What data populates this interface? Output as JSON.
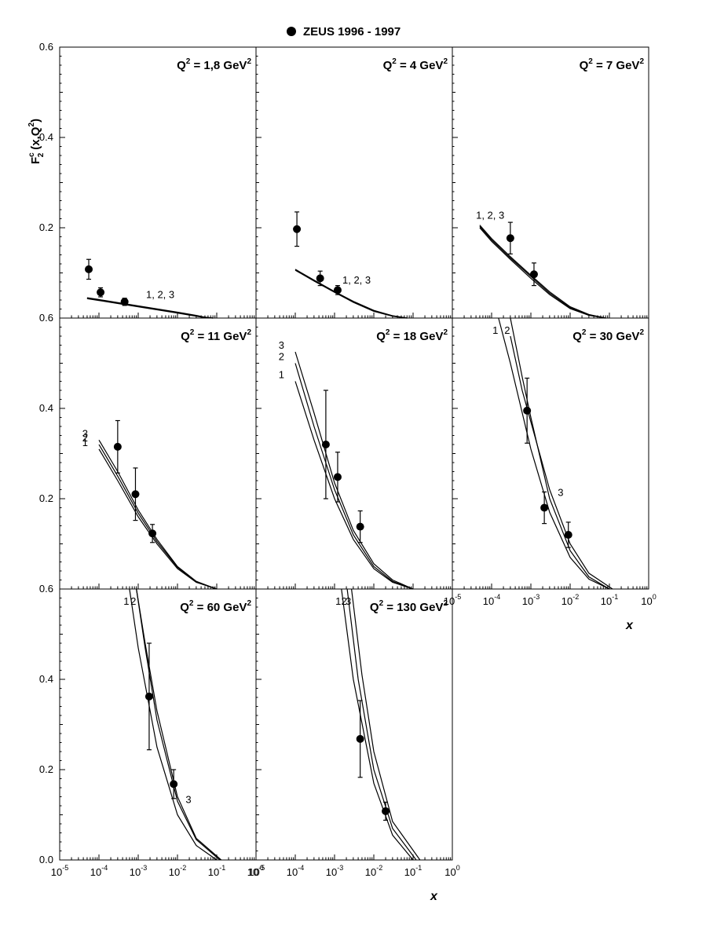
{
  "chart_data": {
    "type": "scatter",
    "legend": {
      "marker": "filled-circle",
      "label": "ZEUS 1996 - 1997",
      "placement": "top"
    },
    "ylabel": {
      "main": "F",
      "sup": "c",
      "sub": "2",
      "args": "(x,Q",
      "args_sup": "2",
      "args_close": ")"
    },
    "xlabel": "x",
    "x_scale": "log",
    "xlim": [
      1e-05,
      1
    ],
    "ylim": [
      0.0,
      0.6
    ],
    "x_tick_labels": [
      {
        "base": "10",
        "exp": "-5"
      },
      {
        "base": "10",
        "exp": "-4"
      },
      {
        "base": "10",
        "exp": "-3"
      },
      {
        "base": "10",
        "exp": "-2"
      },
      {
        "base": "10",
        "exp": "-1"
      },
      {
        "base": "10",
        "exp": "0"
      }
    ],
    "y_tick_labels": [
      "0.0",
      "0.2",
      "0.4",
      "0.6"
    ],
    "panels": [
      {
        "title": "Q² = 1,8 GeV²",
        "title_main": "Q",
        "title_mid": " = 1,8 GeV",
        "sup": "2",
        "points": [
          {
            "x": 5.5e-05,
            "y": 0.108,
            "err": 0.022
          },
          {
            "x": 0.00011,
            "y": 0.057,
            "err": 0.01
          },
          {
            "x": 0.00045,
            "y": 0.036,
            "err": 0.008
          }
        ],
        "curves": [
          {
            "name": "1",
            "points": [
              [
                5e-05,
                0.043
              ],
              [
                0.0001,
                0.039
              ],
              [
                0.001,
                0.025
              ],
              [
                0.01,
                0.011
              ],
              [
                0.03,
                0.004
              ],
              [
                0.05,
                0.001
              ],
              [
                0.08,
                0.0
              ]
            ]
          },
          {
            "name": "2",
            "points": [
              [
                5e-05,
                0.044
              ],
              [
                0.0001,
                0.04
              ],
              [
                0.001,
                0.026
              ],
              [
                0.01,
                0.012
              ],
              [
                0.03,
                0.005
              ],
              [
                0.05,
                0.002
              ],
              [
                0.08,
                0.0
              ]
            ]
          },
          {
            "name": "3",
            "points": [
              [
                5e-05,
                0.045
              ],
              [
                0.0001,
                0.041
              ],
              [
                0.001,
                0.027
              ],
              [
                0.01,
                0.013
              ],
              [
                0.03,
                0.006
              ],
              [
                0.05,
                0.002
              ],
              [
                0.08,
                0.0
              ]
            ]
          }
        ],
        "curve_labels": [
          "1, 2, 3"
        ]
      },
      {
        "title": "Q² = 4 GeV²",
        "title_main": "Q",
        "title_mid": " = 4 GeV",
        "sup": "2",
        "points": [
          {
            "x": 0.00011,
            "y": 0.197,
            "err": 0.038
          },
          {
            "x": 0.00043,
            "y": 0.088,
            "err": 0.016
          },
          {
            "x": 0.0012,
            "y": 0.062,
            "err": 0.01
          }
        ],
        "curves": [
          {
            "name": "1",
            "points": [
              [
                0.0001,
                0.106
              ],
              [
                0.0003,
                0.082
              ],
              [
                0.001,
                0.057
              ],
              [
                0.003,
                0.035
              ],
              [
                0.01,
                0.015
              ],
              [
                0.03,
                0.004
              ],
              [
                0.07,
                0.0
              ]
            ]
          },
          {
            "name": "2",
            "points": [
              [
                0.0001,
                0.107
              ],
              [
                0.0003,
                0.083
              ],
              [
                0.001,
                0.058
              ],
              [
                0.003,
                0.036
              ],
              [
                0.01,
                0.016
              ],
              [
                0.03,
                0.005
              ],
              [
                0.07,
                0.0
              ]
            ]
          },
          {
            "name": "3",
            "points": [
              [
                0.0001,
                0.108
              ],
              [
                0.0003,
                0.084
              ],
              [
                0.001,
                0.059
              ],
              [
                0.003,
                0.037
              ],
              [
                0.01,
                0.017
              ],
              [
                0.03,
                0.005
              ],
              [
                0.07,
                0.0
              ]
            ]
          }
        ],
        "curve_labels": [
          "1, 2, 3"
        ]
      },
      {
        "title": "Q² = 7 GeV²",
        "title_main": "Q",
        "title_mid": " = 7 GeV",
        "sup": "2",
        "points": [
          {
            "x": 0.0003,
            "y": 0.177,
            "err": 0.035
          },
          {
            "x": 0.0012,
            "y": 0.097,
            "err": 0.025
          }
        ],
        "curves": [
          {
            "name": "1",
            "points": [
              [
                5e-05,
                0.2
              ],
              [
                0.0001,
                0.17
              ],
              [
                0.0003,
                0.13
              ],
              [
                0.001,
                0.088
              ],
              [
                0.003,
                0.052
              ],
              [
                0.01,
                0.021
              ],
              [
                0.03,
                0.006
              ],
              [
                0.08,
                0.0
              ]
            ]
          },
          {
            "name": "2",
            "points": [
              [
                5e-05,
                0.203
              ],
              [
                0.0001,
                0.173
              ],
              [
                0.0003,
                0.133
              ],
              [
                0.001,
                0.092
              ],
              [
                0.003,
                0.055
              ],
              [
                0.01,
                0.023
              ],
              [
                0.03,
                0.007
              ],
              [
                0.08,
                0.0
              ]
            ]
          },
          {
            "name": "3",
            "points": [
              [
                5e-05,
                0.206
              ],
              [
                0.0001,
                0.176
              ],
              [
                0.0003,
                0.136
              ],
              [
                0.001,
                0.095
              ],
              [
                0.003,
                0.058
              ],
              [
                0.01,
                0.025
              ],
              [
                0.03,
                0.008
              ],
              [
                0.08,
                0.0
              ]
            ]
          }
        ],
        "curve_labels": [
          "1, 2, 3"
        ]
      },
      {
        "title": "Q² = 11 GeV²",
        "title_main": "Q",
        "title_mid": " = 11 GeV",
        "sup": "2",
        "points": [
          {
            "x": 0.0003,
            "y": 0.315,
            "err": 0.058
          },
          {
            "x": 0.00085,
            "y": 0.21,
            "err": 0.058
          },
          {
            "x": 0.0023,
            "y": 0.123,
            "err": 0.02
          }
        ],
        "curves": [
          {
            "name": "1",
            "points": [
              [
                0.0001,
                0.31
              ],
              [
                0.0003,
                0.24
              ],
              [
                0.001,
                0.16
              ],
              [
                0.003,
                0.1
              ],
              [
                0.01,
                0.045
              ],
              [
                0.03,
                0.015
              ],
              [
                0.1,
                0.0
              ]
            ]
          },
          {
            "name": "2",
            "points": [
              [
                0.0001,
                0.32
              ],
              [
                0.0003,
                0.25
              ],
              [
                0.001,
                0.168
              ],
              [
                0.003,
                0.105
              ],
              [
                0.01,
                0.048
              ],
              [
                0.03,
                0.016
              ],
              [
                0.1,
                0.0
              ]
            ]
          },
          {
            "name": "3",
            "points": [
              [
                0.0001,
                0.33
              ],
              [
                0.0003,
                0.26
              ],
              [
                0.001,
                0.175
              ],
              [
                0.003,
                0.11
              ],
              [
                0.01,
                0.05
              ],
              [
                0.03,
                0.017
              ],
              [
                0.1,
                0.0
              ]
            ]
          }
        ],
        "curve_labels": [
          "3",
          "2",
          "1"
        ]
      },
      {
        "title": "Q² = 18 GeV²",
        "title_main": "Q",
        "title_mid": " = 18 GeV",
        "sup": "2",
        "points": [
          {
            "x": 0.0006,
            "y": 0.32,
            "err": 0.12
          },
          {
            "x": 0.0012,
            "y": 0.248,
            "err": 0.055
          },
          {
            "x": 0.0045,
            "y": 0.138,
            "err": 0.035
          }
        ],
        "curves": [
          {
            "name": "1",
            "points": [
              [
                0.0001,
                0.46
              ],
              [
                0.0003,
                0.33
              ],
              [
                0.001,
                0.2
              ],
              [
                0.003,
                0.11
              ],
              [
                0.01,
                0.045
              ],
              [
                0.03,
                0.015
              ],
              [
                0.1,
                0.0
              ]
            ]
          },
          {
            "name": "2",
            "points": [
              [
                0.0001,
                0.5
              ],
              [
                0.0003,
                0.36
              ],
              [
                0.001,
                0.22
              ],
              [
                0.003,
                0.12
              ],
              [
                0.01,
                0.05
              ],
              [
                0.03,
                0.017
              ],
              [
                0.1,
                0.0
              ]
            ]
          },
          {
            "name": "3",
            "points": [
              [
                0.0001,
                0.525
              ],
              [
                0.0003,
                0.39
              ],
              [
                0.001,
                0.235
              ],
              [
                0.003,
                0.13
              ],
              [
                0.01,
                0.056
              ],
              [
                0.03,
                0.02
              ],
              [
                0.1,
                0.0
              ]
            ]
          }
        ],
        "curve_labels": [
          "3",
          "2",
          "1"
        ]
      },
      {
        "title": "Q² = 30 GeV²",
        "title_main": "Q",
        "title_mid": " = 30 GeV",
        "sup": "2",
        "points": [
          {
            "x": 0.0008,
            "y": 0.395,
            "err": 0.072
          },
          {
            "x": 0.0022,
            "y": 0.18,
            "err": 0.035
          },
          {
            "x": 0.009,
            "y": 0.12,
            "err": 0.028
          }
        ],
        "curves": [
          {
            "name": "1",
            "points": [
              [
                0.00015,
                0.6
              ],
              [
                0.0003,
                0.5
              ],
              [
                0.001,
                0.31
              ],
              [
                0.003,
                0.17
              ],
              [
                0.01,
                0.07
              ],
              [
                0.03,
                0.022
              ],
              [
                0.1,
                0.0
              ]
            ]
          },
          {
            "name": "2",
            "points": [
              [
                0.0003,
                0.6
              ],
              [
                0.0006,
                0.47
              ],
              [
                0.001,
                0.38
              ],
              [
                0.003,
                0.2
              ],
              [
                0.01,
                0.085
              ],
              [
                0.03,
                0.027
              ],
              [
                0.1,
                0.0
              ]
            ]
          },
          {
            "name": "3",
            "points": [
              [
                0.0003,
                0.56
              ],
              [
                0.0006,
                0.44
              ],
              [
                0.001,
                0.37
              ],
              [
                0.003,
                0.22
              ],
              [
                0.01,
                0.1
              ],
              [
                0.03,
                0.035
              ],
              [
                0.12,
                0.0
              ]
            ]
          }
        ],
        "curve_labels": [
          "1",
          "2",
          "3"
        ]
      },
      {
        "title": "Q² = 60 GeV²",
        "title_main": "Q",
        "title_mid": " = 60 GeV",
        "sup": "2",
        "points": [
          {
            "x": 0.0019,
            "y": 0.362,
            "err": 0.118
          },
          {
            "x": 0.008,
            "y": 0.168,
            "err": 0.032
          }
        ],
        "curves": [
          {
            "name": "1",
            "points": [
              [
                0.0006,
                0.6
              ],
              [
                0.001,
                0.47
              ],
              [
                0.003,
                0.25
              ],
              [
                0.01,
                0.1
              ],
              [
                0.03,
                0.032
              ],
              [
                0.1,
                0.0
              ]
            ]
          },
          {
            "name": "2",
            "points": [
              [
                0.0009,
                0.6
              ],
              [
                0.0015,
                0.47
              ],
              [
                0.003,
                0.31
              ],
              [
                0.01,
                0.13
              ],
              [
                0.03,
                0.045
              ],
              [
                0.12,
                0.0
              ]
            ]
          },
          {
            "name": "3",
            "points": [
              [
                0.0009,
                0.6
              ],
              [
                0.0015,
                0.48
              ],
              [
                0.003,
                0.33
              ],
              [
                0.01,
                0.14
              ],
              [
                0.03,
                0.048
              ],
              [
                0.13,
                0.0
              ]
            ]
          }
        ],
        "curve_labels": [
          "1",
          "2",
          "3"
        ]
      },
      {
        "title": "Q² = 130 GeV²",
        "title_main": "Q",
        "title_mid": " = 130 GeV",
        "sup": "2",
        "points": [
          {
            "x": 0.0045,
            "y": 0.268,
            "err": 0.085
          },
          {
            "x": 0.02,
            "y": 0.108,
            "err": 0.02
          }
        ],
        "curves": [
          {
            "name": "1",
            "points": [
              [
                0.0015,
                0.6
              ],
              [
                0.003,
                0.4
              ],
              [
                0.01,
                0.17
              ],
              [
                0.03,
                0.055
              ],
              [
                0.1,
                0.0
              ]
            ]
          },
          {
            "name": "2",
            "points": [
              [
                0.0021,
                0.6
              ],
              [
                0.004,
                0.4
              ],
              [
                0.01,
                0.2
              ],
              [
                0.03,
                0.07
              ],
              [
                0.12,
                0.0
              ]
            ]
          },
          {
            "name": "3",
            "points": [
              [
                0.0027,
                0.6
              ],
              [
                0.005,
                0.41
              ],
              [
                0.01,
                0.24
              ],
              [
                0.03,
                0.085
              ],
              [
                0.15,
                0.0
              ]
            ]
          }
        ],
        "curve_labels": [
          "1",
          "2",
          "3"
        ]
      }
    ]
  }
}
